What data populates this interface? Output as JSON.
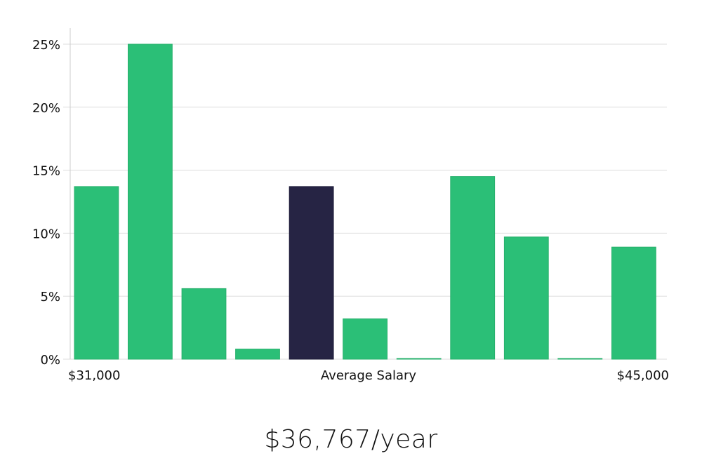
{
  "chart_data": {
    "type": "bar",
    "title": "",
    "xlabel": "Average Salary",
    "ylabel": "",
    "x_min_label": "$31,000",
    "x_max_label": "$45,000",
    "ylim": [
      0,
      25
    ],
    "yticks": [
      0,
      5,
      10,
      15,
      20,
      25
    ],
    "ytick_labels": [
      "0%",
      "5%",
      "10%",
      "15%",
      "20%",
      "25%"
    ],
    "values": [
      13.7,
      25.0,
      5.6,
      0.8,
      13.7,
      3.2,
      0.05,
      14.5,
      9.7,
      0.05,
      8.9
    ],
    "highlight_index": 4,
    "colors": {
      "bar": "#2bbf77",
      "highlight": "#262444",
      "grid": "#dddddd",
      "axis": "#cccccc"
    }
  },
  "summary": {
    "salary_text": "$36,767/year"
  }
}
